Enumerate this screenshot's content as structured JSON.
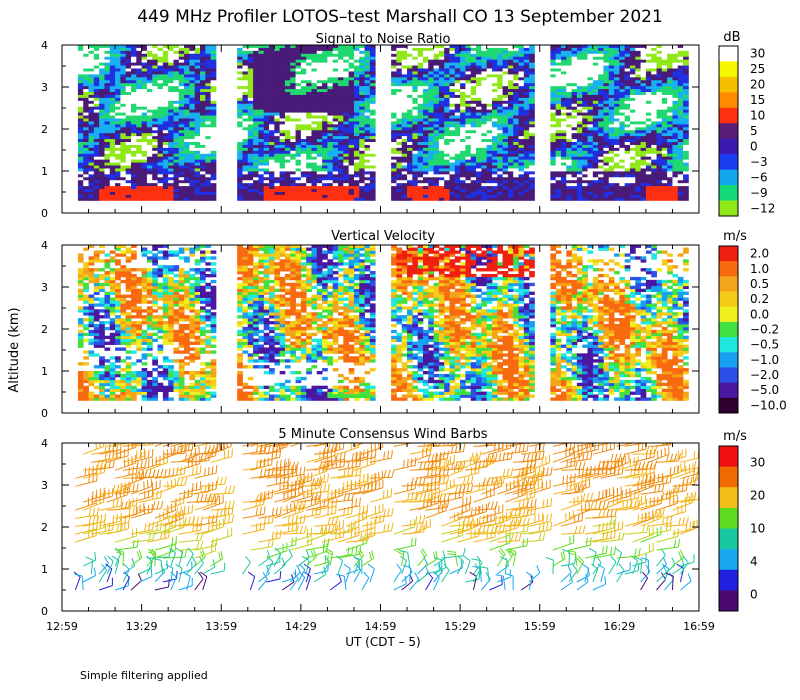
{
  "title": "449 MHz Profiler LOTOS–test Marshall CO 13 September 2021",
  "ylabel": "Altitude (km)",
  "xlabel": "UT  (CDT – 5)",
  "footnote": "Simple filtering applied",
  "x_ticks": [
    "12:59",
    "13:29",
    "13:59",
    "14:29",
    "14:59",
    "15:29",
    "15:59",
    "16:29",
    "16:59"
  ],
  "x_range_minutes": [
    0,
    240
  ],
  "data_gaps_minutes": [
    [
      0,
      5
    ],
    [
      58,
      66
    ],
    [
      118,
      124
    ],
    [
      178,
      184
    ],
    [
      235,
      240
    ]
  ],
  "chart_data": [
    {
      "type": "heatmap",
      "title": "Signal to Noise Ratio",
      "unit": "dB",
      "ylim": [
        0,
        4
      ],
      "y_ticks": [
        "0",
        "1",
        "2",
        "3",
        "4"
      ],
      "colorbar_labels": [
        "30",
        "25",
        "20",
        "15",
        "10",
        "5",
        "0",
        "−3",
        "−6",
        "−9",
        "−12"
      ],
      "colorbar_colors": [
        "#ffffff",
        "#f6f600",
        "#f4c000",
        "#ff8c00",
        "#ff3010",
        "#5a1e7a",
        "#3a1ab0",
        "#1a3cf0",
        "#12a8f0",
        "#12d878",
        "#90e818"
      ],
      "levels": [
        "white",
        "yellow",
        "orange",
        "red",
        "purple",
        "blue",
        "cyan",
        "green"
      ]
    },
    {
      "type": "heatmap",
      "title": "Vertical Velocity",
      "unit": "m/s",
      "ylim": [
        0,
        4
      ],
      "y_ticks": [
        "0",
        "1",
        "2",
        "3",
        "4"
      ],
      "colorbar_labels": [
        "2.0",
        "1.0",
        "0.5",
        "0.2",
        "0.0",
        "−0.2",
        "−0.5",
        "−1.0",
        "−2.0",
        "−5.0",
        "−10.0"
      ],
      "colorbar_colors": [
        "#f02010",
        "#f86a10",
        "#f4a418",
        "#f4cc18",
        "#f0f020",
        "#40e040",
        "#20e8e0",
        "#18a0f0",
        "#2a50e8",
        "#4a18a0",
        "#300030"
      ]
    },
    {
      "type": "scatter",
      "subtype": "wind_barbs",
      "title": "5 Minute Consensus Wind Barbs",
      "unit": "m/s",
      "ylim": [
        0,
        4
      ],
      "y_ticks": [
        "0",
        "1",
        "2",
        "3",
        "4"
      ],
      "colorbar_labels": [
        "30",
        "20",
        "10",
        "4",
        "0"
      ],
      "colorbar_colors": [
        "#f01010",
        "#f06a00",
        "#f4c018",
        "#60dc20",
        "#18c8a0",
        "#18a8f0",
        "#2020e0",
        "#4a0a70"
      ],
      "speed_profile": [
        {
          "altitude_km": 0.8,
          "speed_ms": 6
        },
        {
          "altitude_km": 1.3,
          "speed_ms": 11
        },
        {
          "altitude_km": 2.1,
          "speed_ms": 18
        },
        {
          "altitude_km": 3.0,
          "speed_ms": 20
        },
        {
          "altitude_km": 3.8,
          "speed_ms": 21
        }
      ]
    }
  ]
}
